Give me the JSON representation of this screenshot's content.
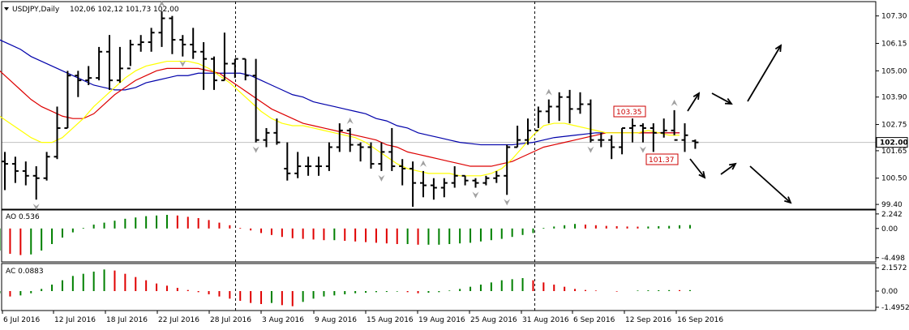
{
  "window": {
    "title": "USDJPY,Daily",
    "ohlc": "102,06 102,12 101,73 102,00"
  },
  "colors": {
    "ma_fast": "#ffff00",
    "ma_mid": "#dd0000",
    "ma_slow": "#0000aa",
    "bar": "#000000",
    "up": "#008000",
    "down": "#e00000",
    "fractal": "#a0a0a0",
    "grid": "#c0c0c0"
  },
  "chart_data": {
    "type": "ohlc",
    "price_axis": {
      "ticks": [
        "107.30",
        "106.15",
        "105.00",
        "103.90",
        "102.75",
        "101.65",
        "100.50",
        "99.40"
      ],
      "ylim": [
        99.2,
        107.9
      ],
      "current_price": "102.00"
    },
    "date_labels": [
      "6 Jul 2016",
      "12 Jul 2016",
      "18 Jul 2016",
      "22 Jul 2016",
      "28 Jul 2016",
      "3 Aug 2016",
      "9 Aug 2016",
      "15 Aug 2016",
      "19 Aug 2016",
      "25 Aug 2016",
      "31 Aug 2016",
      "6 Sep 2016",
      "12 Sep 2016",
      "16 Sep 2016"
    ],
    "bars": [
      {
        "h": 101.6,
        "l": 100.0,
        "o": 101.2,
        "c": 101.1
      },
      {
        "h": 101.4,
        "l": 100.3,
        "o": 101.1,
        "c": 100.8
      },
      {
        "h": 101.2,
        "l": 100.2,
        "o": 100.8,
        "c": 100.6
      },
      {
        "h": 101.0,
        "l": 99.6,
        "o": 100.6,
        "c": 100.5
      },
      {
        "h": 101.6,
        "l": 100.4,
        "o": 100.5,
        "c": 101.4
      },
      {
        "h": 103.5,
        "l": 101.3,
        "o": 101.4,
        "c": 102.6
      },
      {
        "h": 105.0,
        "l": 102.6,
        "o": 102.6,
        "c": 104.8
      },
      {
        "h": 105.0,
        "l": 103.9,
        "o": 104.8,
        "c": 104.6
      },
      {
        "h": 105.2,
        "l": 104.4,
        "o": 104.6,
        "c": 104.7
      },
      {
        "h": 106.0,
        "l": 104.6,
        "o": 104.7,
        "c": 105.8
      },
      {
        "h": 106.5,
        "l": 104.2,
        "o": 105.8,
        "c": 104.6
      },
      {
        "h": 106.0,
        "l": 104.5,
        "o": 104.6,
        "c": 105.1
      },
      {
        "h": 106.3,
        "l": 105.2,
        "o": 105.1,
        "c": 106.1
      },
      {
        "h": 106.5,
        "l": 105.8,
        "o": 106.1,
        "c": 106.2
      },
      {
        "h": 106.8,
        "l": 105.8,
        "o": 106.2,
        "c": 106.6
      },
      {
        "h": 107.5,
        "l": 106.0,
        "o": 106.6,
        "c": 107.2
      },
      {
        "h": 107.3,
        "l": 105.7,
        "o": 107.2,
        "c": 106.3
      },
      {
        "h": 106.5,
        "l": 105.6,
        "o": 106.3,
        "c": 106.1
      },
      {
        "h": 106.8,
        "l": 105.5,
        "o": 106.1,
        "c": 105.8
      },
      {
        "h": 106.2,
        "l": 104.2,
        "o": 105.8,
        "c": 105.5
      },
      {
        "h": 105.6,
        "l": 104.2,
        "o": 105.5,
        "c": 104.6
      },
      {
        "h": 106.6,
        "l": 104.6,
        "o": 104.6,
        "c": 105.3
      },
      {
        "h": 105.5,
        "l": 104.7,
        "o": 105.3,
        "c": 105.5
      },
      {
        "h": 105.5,
        "l": 104.6,
        "o": 105.5,
        "c": 104.8
      },
      {
        "h": 105.5,
        "l": 102.0,
        "o": 104.8,
        "c": 102.1
      },
      {
        "h": 102.6,
        "l": 101.8,
        "o": 102.1,
        "c": 102.4
      },
      {
        "h": 103.0,
        "l": 101.9,
        "o": 102.4,
        "c": 102.0
      },
      {
        "h": 102.0,
        "l": 100.4,
        "o": 100.9,
        "c": 100.7
      },
      {
        "h": 101.6,
        "l": 100.5,
        "o": 100.7,
        "c": 101.0
      },
      {
        "h": 101.4,
        "l": 100.6,
        "o": 101.0,
        "c": 101.0
      },
      {
        "h": 101.4,
        "l": 100.6,
        "o": 101.0,
        "c": 101.0
      },
      {
        "h": 102.0,
        "l": 100.8,
        "o": 101.0,
        "c": 101.8
      },
      {
        "h": 102.8,
        "l": 101.6,
        "o": 101.8,
        "c": 102.5
      },
      {
        "h": 102.6,
        "l": 101.6,
        "o": 102.5,
        "c": 101.9
      },
      {
        "h": 102.0,
        "l": 101.2,
        "o": 101.9,
        "c": 101.8
      },
      {
        "h": 102.0,
        "l": 100.9,
        "o": 101.8,
        "c": 101.1
      },
      {
        "h": 102.0,
        "l": 100.8,
        "o": 101.1,
        "c": 101.6
      },
      {
        "h": 102.6,
        "l": 100.8,
        "o": 101.6,
        "c": 101.0
      },
      {
        "h": 101.3,
        "l": 100.2,
        "o": 101.0,
        "c": 100.9
      },
      {
        "h": 101.2,
        "l": 99.3,
        "o": 100.9,
        "c": 100.3
      },
      {
        "h": 100.8,
        "l": 99.7,
        "o": 100.3,
        "c": 100.2
      },
      {
        "h": 100.5,
        "l": 99.6,
        "o": 100.2,
        "c": 100.1
      },
      {
        "h": 100.5,
        "l": 99.7,
        "o": 100.1,
        "c": 100.3
      },
      {
        "h": 101.0,
        "l": 100.1,
        "o": 100.3,
        "c": 100.6
      },
      {
        "h": 100.6,
        "l": 100.2,
        "o": 100.6,
        "c": 100.4
      },
      {
        "h": 100.5,
        "l": 100.1,
        "o": 100.4,
        "c": 100.3
      },
      {
        "h": 100.6,
        "l": 100.2,
        "o": 100.3,
        "c": 100.5
      },
      {
        "h": 100.8,
        "l": 100.3,
        "o": 100.5,
        "c": 100.6
      },
      {
        "h": 101.9,
        "l": 99.8,
        "o": 100.6,
        "c": 101.8
      },
      {
        "h": 102.7,
        "l": 101.8,
        "o": 101.8,
        "c": 102.1
      },
      {
        "h": 103.0,
        "l": 101.9,
        "o": 102.1,
        "c": 102.5
      },
      {
        "h": 103.5,
        "l": 102.6,
        "o": 102.5,
        "c": 103.3
      },
      {
        "h": 103.8,
        "l": 102.8,
        "o": 103.3,
        "c": 103.5
      },
      {
        "h": 104.1,
        "l": 102.9,
        "o": 103.5,
        "c": 103.9
      },
      {
        "h": 104.2,
        "l": 102.8,
        "o": 103.9,
        "c": 103.4
      },
      {
        "h": 104.1,
        "l": 103.2,
        "o": 103.4,
        "c": 103.6
      },
      {
        "h": 103.8,
        "l": 102.0,
        "o": 103.6,
        "c": 102.1
      },
      {
        "h": 102.4,
        "l": 101.8,
        "o": 102.1,
        "c": 102.1
      },
      {
        "h": 102.3,
        "l": 101.3,
        "o": 102.1,
        "c": 101.8
      },
      {
        "h": 102.6,
        "l": 101.5,
        "o": 101.8,
        "c": 102.6
      },
      {
        "h": 103.0,
        "l": 102.0,
        "o": 102.6,
        "c": 102.7
      },
      {
        "h": 102.8,
        "l": 102.0,
        "o": 102.7,
        "c": 102.6
      },
      {
        "h": 102.8,
        "l": 101.6,
        "o": 102.6,
        "c": 102.4
      },
      {
        "h": 103.0,
        "l": 102.2,
        "o": 102.4,
        "c": 102.5
      },
      {
        "h": 103.35,
        "l": 102.3,
        "o": 102.5,
        "c": 102.1
      },
      {
        "h": 102.8,
        "l": 101.6,
        "o": 102.1,
        "c": 102.3
      },
      {
        "h": 102.12,
        "l": 101.73,
        "o": 102.06,
        "c": 102.0
      }
    ],
    "ma_fast": [
      103.3,
      103.1,
      102.8,
      102.5,
      102.2,
      102.0,
      102.0,
      102.2,
      102.6,
      103.0,
      103.5,
      103.9,
      104.3,
      104.7,
      105.0,
      105.2,
      105.3,
      105.4,
      105.4,
      105.4,
      105.3,
      105.1,
      104.8,
      104.5,
      104.1,
      103.7,
      103.3,
      103.0,
      102.8,
      102.7,
      102.7,
      102.6,
      102.5,
      102.4,
      102.3,
      102.2,
      102.0,
      101.7,
      101.4,
      101.1,
      100.9,
      100.8,
      100.7,
      100.7,
      100.7,
      100.6,
      100.6,
      100.6,
      100.7,
      100.9,
      101.3,
      101.8,
      102.3,
      102.7,
      102.8,
      102.8,
      102.7,
      102.6,
      102.5,
      102.4,
      102.4,
      102.4,
      102.4,
      102.5,
      102.4,
      102.3,
      102.3
    ],
    "ma_mid": [
      105.3,
      105.0,
      104.6,
      104.2,
      103.8,
      103.5,
      103.3,
      103.1,
      103.0,
      103.0,
      103.2,
      103.6,
      104.0,
      104.3,
      104.6,
      104.8,
      105.0,
      105.1,
      105.1,
      105.1,
      105.1,
      105.0,
      104.9,
      104.6,
      104.3,
      104.0,
      103.7,
      103.4,
      103.2,
      103.0,
      102.8,
      102.7,
      102.6,
      102.5,
      102.4,
      102.3,
      102.2,
      102.1,
      101.9,
      101.8,
      101.6,
      101.5,
      101.4,
      101.3,
      101.2,
      101.1,
      101.0,
      101.0,
      101.0,
      101.1,
      101.2,
      101.4,
      101.6,
      101.8,
      101.9,
      102.0,
      102.1,
      102.2,
      102.3,
      102.4,
      102.4,
      102.4,
      102.4,
      102.4,
      102.4,
      102.4,
      102.4
    ],
    "ma_slow": [
      106.6,
      106.3,
      106.1,
      105.9,
      105.6,
      105.4,
      105.2,
      105.0,
      104.8,
      104.6,
      104.4,
      104.3,
      104.2,
      104.2,
      104.3,
      104.5,
      104.6,
      104.7,
      104.8,
      104.8,
      104.9,
      104.9,
      104.9,
      104.9,
      104.9,
      104.8,
      104.6,
      104.4,
      104.2,
      104.0,
      103.9,
      103.7,
      103.6,
      103.5,
      103.4,
      103.3,
      103.2,
      103.0,
      102.9,
      102.7,
      102.6,
      102.4,
      102.3,
      102.2,
      102.1,
      102.0,
      101.95,
      101.9,
      101.9,
      101.9,
      101.9,
      101.95,
      102.0,
      102.1,
      102.2,
      102.25,
      102.3,
      102.35,
      102.4,
      102.4,
      102.4,
      102.4,
      102.4,
      102.4,
      102.4,
      102.4,
      102.4
    ],
    "annotations": {
      "high_label": "103.35",
      "low_label": "101.37"
    },
    "ao": {
      "label": "AO 0.536",
      "ticks": [
        "2.242",
        "0.00",
        "-4.498"
      ],
      "range": [
        -4.9,
        2.6
      ],
      "values": [
        -3.4,
        -3.9,
        -4.1,
        -4.0,
        -3.4,
        -2.4,
        -1.4,
        -0.6,
        0.1,
        0.6,
        0.9,
        1.2,
        1.5,
        1.7,
        1.9,
        2.0,
        2.1,
        2.0,
        1.8,
        1.6,
        1.3,
        0.9,
        0.5,
        0.1,
        -0.3,
        -0.7,
        -1.0,
        -1.3,
        -1.5,
        -1.6,
        -1.7,
        -1.8,
        -1.8,
        -1.9,
        -2.0,
        -2.1,
        -2.2,
        -2.3,
        -2.4,
        -2.4,
        -2.5,
        -2.5,
        -2.5,
        -2.4,
        -2.3,
        -2.2,
        -2.0,
        -1.8,
        -1.6,
        -1.3,
        -1.0,
        -0.7,
        0.1,
        0.3,
        0.5,
        0.7,
        0.6,
        0.5,
        0.4,
        0.35,
        0.3,
        0.28,
        0.3,
        0.35,
        0.4,
        0.5,
        0.536
      ]
    },
    "ac": {
      "label": "AC 0.0883",
      "ticks": [
        "2.1572",
        "0.00",
        "-1.4952"
      ],
      "range": [
        -1.65,
        2.4
      ],
      "values": [
        -0.2,
        -0.5,
        -0.4,
        -0.2,
        0.2,
        0.6,
        1.0,
        1.4,
        1.6,
        1.8,
        2.0,
        1.9,
        1.6,
        1.3,
        1.0,
        0.7,
        0.5,
        0.3,
        0.1,
        -0.1,
        -0.3,
        -0.5,
        -0.7,
        -0.9,
        -1.1,
        -1.2,
        -1.1,
        -1.3,
        -1.4,
        -1.0,
        -0.7,
        -0.5,
        -0.4,
        -0.3,
        -0.2,
        -0.15,
        -0.1,
        -0.08,
        -0.05,
        -0.1,
        -0.2,
        -0.15,
        -0.1,
        0.05,
        0.2,
        0.4,
        0.6,
        0.8,
        1.0,
        1.1,
        1.2,
        1.0,
        0.8,
        0.6,
        0.4,
        0.2,
        0.1,
        0.05,
        0.0,
        -0.05,
        0.0,
        0.05,
        0.07,
        0.08,
        0.09,
        0.0883,
        0.0883
      ]
    }
  }
}
